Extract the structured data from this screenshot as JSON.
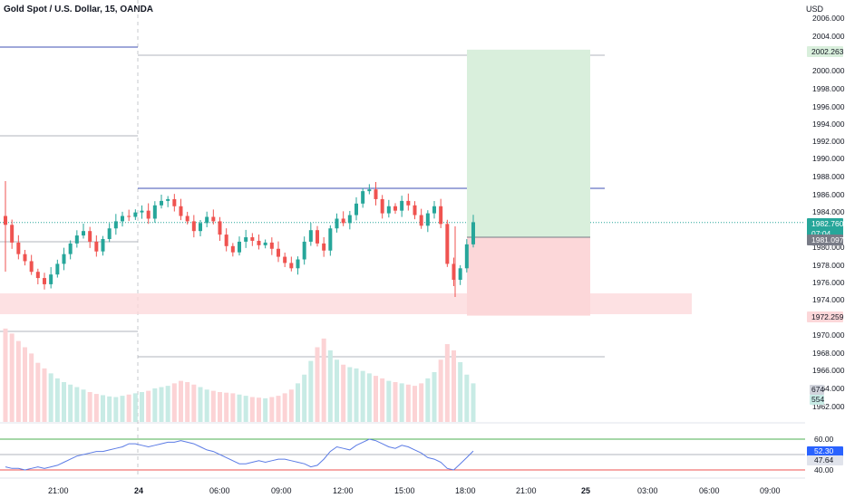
{
  "header": {
    "title": "Gold Spot / U.S. Dollar, 15, OANDA",
    "currency": "USD"
  },
  "colors": {
    "up": "#26a69a",
    "down": "#ef5350",
    "target_zone": "#d9efdc",
    "stop_zone": "#fcd7d9",
    "level_blue": "#3f51b5",
    "rsi_line": "#5b7be5",
    "rsi_upper": "#4caf50",
    "rsi_lower": "#ef5350",
    "price_tag": "#26a69a",
    "entry_tag": "#787b86"
  },
  "price_axis": {
    "ticks": [
      "2006.000",
      "2004.000",
      "2002.000",
      "2000.000",
      "1998.000",
      "1996.000",
      "1994.000",
      "1992.000",
      "1990.000",
      "1988.000",
      "1986.000",
      "1984.000",
      "1982.000",
      "1980.000",
      "1978.000",
      "1976.000",
      "1974.000",
      "1972.000",
      "1970.000",
      "1968.000",
      "1966.000",
      "1964.000",
      "1962.000"
    ],
    "tag_target": "2002.263",
    "tag_price": "1982.760",
    "tag_countdown": "07:04",
    "tag_entry": "1981.097",
    "tag_stop": "1972.259",
    "tag_vol_down": "674",
    "tag_vol_up": "554"
  },
  "rsi_axis": {
    "ticks": [
      "60.00",
      "40.00"
    ],
    "tag_rsi": "52.30",
    "tag_ma": "47.64"
  },
  "time_axis": {
    "labels": [
      "21:00",
      "24",
      "06:00",
      "09:00",
      "12:00",
      "15:00",
      "18:00",
      "21:00",
      "25",
      "03:00",
      "06:00",
      "09:00"
    ]
  },
  "chart_data": {
    "type": "candlestick",
    "title": "Gold Spot / U.S. Dollar, 15, OANDA",
    "y_unit": "USD",
    "ylim": [
      1961.0,
      2007.0
    ],
    "x_labels": [
      "21:00",
      "24",
      "06:00",
      "09:00",
      "12:00",
      "15:00",
      "18:00",
      "21:00",
      "25",
      "03:00",
      "06:00",
      "09:00"
    ],
    "last_price": 1982.76,
    "position": {
      "entry": 1981.097,
      "target": 2002.263,
      "stop": 1972.259
    },
    "levels": [
      1986.7,
      1974.0
    ],
    "candle_closes": [
      1982.5,
      1980.5,
      1979.2,
      1978.4,
      1977.2,
      1976.5,
      1975.8,
      1976.9,
      1978.1,
      1979.2,
      1980.4,
      1981.3,
      1981.8,
      1980.6,
      1979.5,
      1980.9,
      1982.1,
      1982.9,
      1983.5,
      1983.4,
      1983.9,
      1984.1,
      1983.2,
      1984.7,
      1985.2,
      1985.4,
      1984.6,
      1983.5,
      1982.9,
      1981.8,
      1982.7,
      1983.4,
      1982.9,
      1981.4,
      1980.1,
      1979.4,
      1980.6,
      1981.1,
      1980.7,
      1980.2,
      1980.5,
      1979.8,
      1978.9,
      1978.2,
      1977.6,
      1978.6,
      1980.6,
      1981.9,
      1980.4,
      1979.6,
      1982.1,
      1983.2,
      1982.7,
      1983.6,
      1984.9,
      1986.3,
      1986.5,
      1985.4,
      1983.8,
      1984.6,
      1984.1,
      1985.2,
      1984.7,
      1983.6,
      1982.4,
      1983.8,
      1984.6,
      1982.6,
      1978.1,
      1976.3,
      1977.6,
      1980.3,
      1982.8
    ],
    "volumes": [
      1500,
      1420,
      1300,
      1200,
      1100,
      950,
      860,
      780,
      700,
      640,
      600,
      560,
      520,
      480,
      450,
      430,
      410,
      400,
      420,
      440,
      460,
      480,
      500,
      540,
      560,
      580,
      620,
      660,
      640,
      600,
      560,
      520,
      500,
      480,
      470,
      460,
      440,
      420,
      400,
      390,
      380,
      400,
      420,
      460,
      520,
      620,
      760,
      980,
      1200,
      1340,
      1150,
      1000,
      920,
      880,
      860,
      820,
      780,
      740,
      700,
      660,
      640,
      620,
      600,
      580,
      620,
      700,
      800,
      1000,
      1250,
      1150,
      960,
      760,
      620
    ],
    "rsi": {
      "upper": 60,
      "lower": 40,
      "last": 52.3,
      "ma_last": 47.64,
      "values": [
        42,
        41,
        41,
        40,
        41,
        42,
        41,
        42,
        43,
        45,
        47,
        49,
        50,
        51,
        52,
        52,
        53,
        54,
        55,
        57,
        57,
        56,
        55,
        56,
        57,
        58,
        58,
        59,
        58,
        57,
        55,
        53,
        52,
        50,
        48,
        46,
        44,
        44,
        45,
        46,
        45,
        46,
        47,
        47,
        46,
        45,
        44,
        42,
        43,
        47,
        52,
        55,
        54,
        53,
        56,
        58,
        60,
        59,
        57,
        55,
        54,
        56,
        55,
        53,
        51,
        48,
        47,
        45,
        41,
        40,
        44,
        48,
        52.3
      ]
    }
  }
}
